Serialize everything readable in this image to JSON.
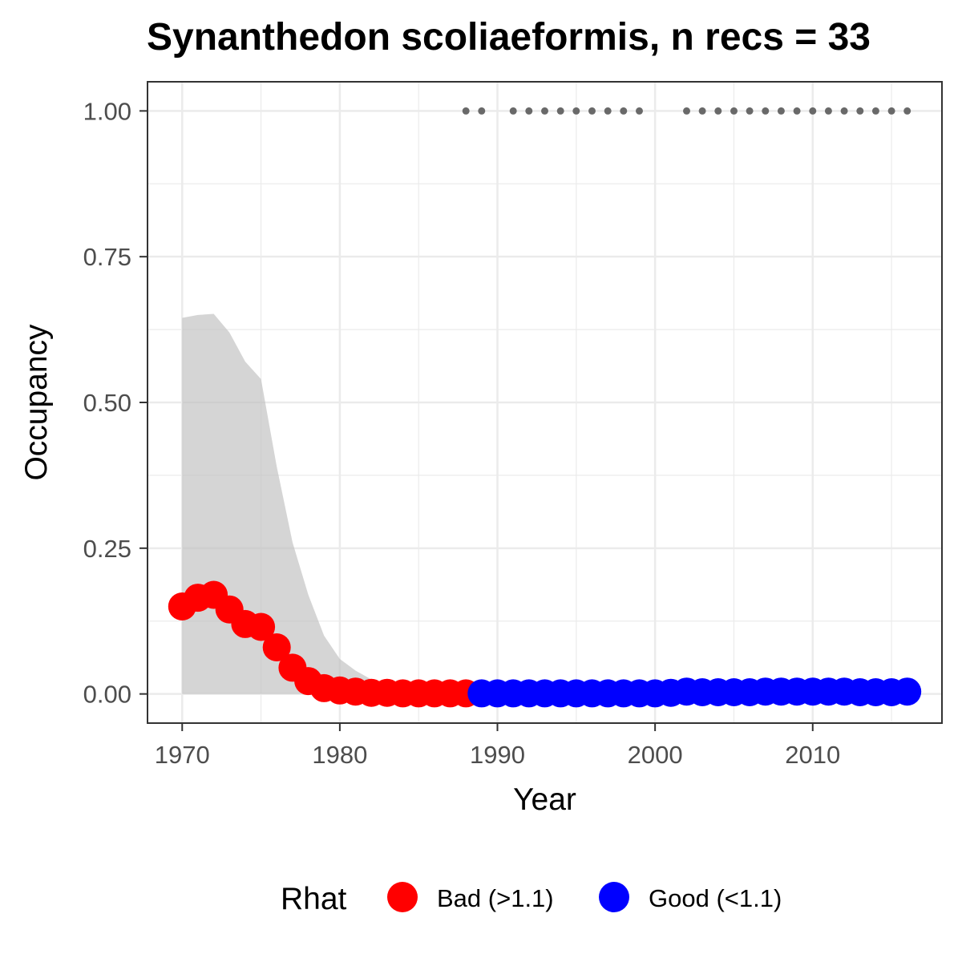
{
  "chart_data": {
    "type": "scatter",
    "title": "Synanthedon scoliaeformis, n recs = 33",
    "xlabel": "Year",
    "ylabel": "Occupancy",
    "xlim": [
      1967.8,
      2018.2
    ],
    "ylim": [
      -0.05,
      1.05
    ],
    "x_ticks": [
      1970,
      1980,
      1990,
      2000,
      2010
    ],
    "y_ticks": [
      0,
      0.25,
      0.5,
      0.75,
      1.0
    ],
    "y_tick_labels": [
      "0.00",
      "0.25",
      "0.50",
      "0.75",
      "1.00"
    ],
    "grid": true,
    "legend": {
      "title": "Rhat",
      "position": "bottom",
      "entries": [
        {
          "label": "Bad (>1.1)",
          "color": "#ff0000"
        },
        {
          "label": "Good (<1.1)",
          "color": "#0000ff"
        }
      ]
    },
    "credible_interval": {
      "color": "#bebebe",
      "x": [
        1970,
        1971,
        1972,
        1973,
        1974,
        1975,
        1976,
        1977,
        1978,
        1979,
        1980,
        1981,
        1982,
        1983,
        1984,
        1985
      ],
      "upper": [
        0.645,
        0.65,
        0.652,
        0.62,
        0.57,
        0.54,
        0.39,
        0.26,
        0.17,
        0.1,
        0.06,
        0.04,
        0.025,
        0.015,
        0.008,
        0.004
      ],
      "lower": [
        0,
        0,
        0,
        0,
        0,
        0,
        0,
        0,
        0,
        0,
        0,
        0,
        0,
        0,
        0,
        0
      ]
    },
    "series": [
      {
        "name": "Bad (>1.1)",
        "color": "#ff0000",
        "x": [
          1970,
          1971,
          1972,
          1973,
          1974,
          1975,
          1976,
          1977,
          1978,
          1979,
          1980,
          1981,
          1982,
          1983,
          1984,
          1985,
          1986,
          1987,
          1988
        ],
        "y": [
          0.15,
          0.165,
          0.17,
          0.145,
          0.12,
          0.115,
          0.08,
          0.045,
          0.022,
          0.01,
          0.006,
          0.004,
          0.002,
          0.002,
          0.001,
          0.001,
          0.001,
          0.001,
          0.001
        ]
      },
      {
        "name": "Good (<1.1)",
        "color": "#0000ff",
        "x": [
          1989,
          1990,
          1991,
          1992,
          1993,
          1994,
          1995,
          1996,
          1997,
          1998,
          1999,
          2000,
          2001,
          2002,
          2003,
          2004,
          2005,
          2006,
          2007,
          2008,
          2009,
          2010,
          2011,
          2012,
          2013,
          2014,
          2015,
          2016
        ],
        "y": [
          0.001,
          0.001,
          0.001,
          0.001,
          0.001,
          0.001,
          0.001,
          0.001,
          0.001,
          0.001,
          0.001,
          0.001,
          0.002,
          0.004,
          0.003,
          0.003,
          0.003,
          0.003,
          0.004,
          0.004,
          0.004,
          0.004,
          0.004,
          0.004,
          0.003,
          0.003,
          0.003,
          0.004
        ]
      }
    ],
    "records": {
      "color": "#696969",
      "y": 1.0,
      "x": [
        1988,
        1989,
        1991,
        1992,
        1993,
        1994,
        1995,
        1996,
        1997,
        1998,
        1999,
        2002,
        2003,
        2004,
        2005,
        2006,
        2007,
        2008,
        2009,
        2010,
        2011,
        2012,
        2013,
        2014,
        2015,
        2016
      ]
    }
  }
}
